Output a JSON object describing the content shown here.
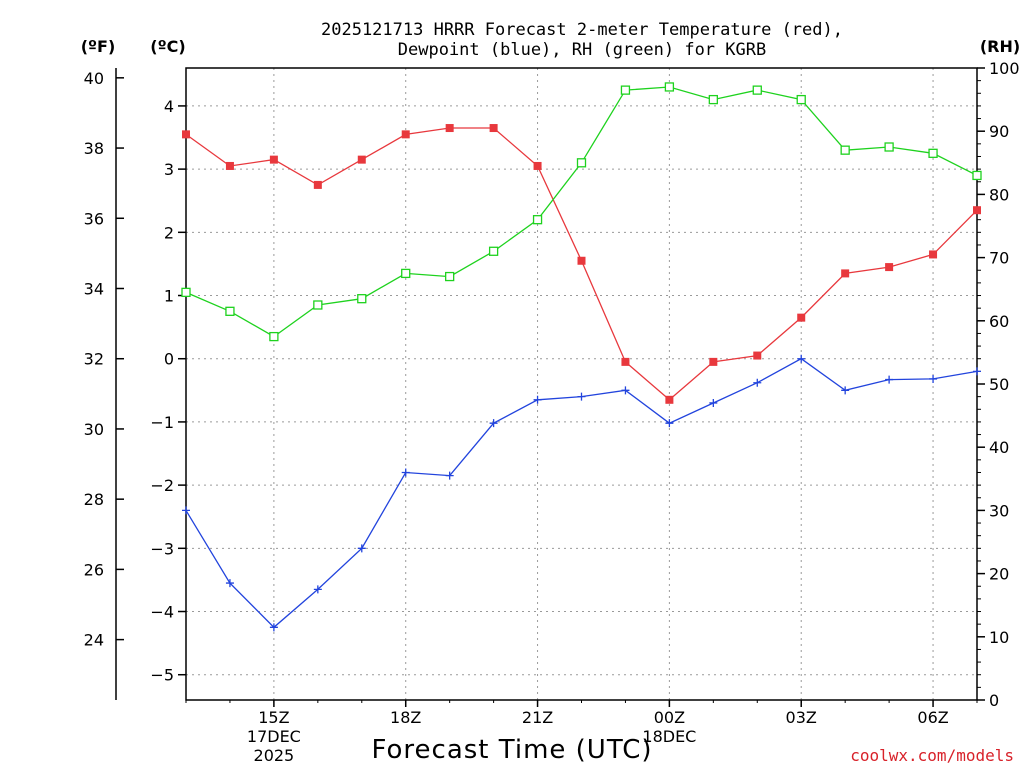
{
  "title_lines": [
    "2025121713 HRRR Forecast 2-meter Temperature (red),",
    "Dewpoint (blue), RH (green) for KGRB"
  ],
  "units": {
    "f": "(ºF)",
    "c": "(ºC)",
    "rh": "(RH)"
  },
  "x_axis_label": "Forecast Time (UTC)",
  "credit": "coolwx.com/models",
  "colors": {
    "temperature": "#e8383d",
    "dewpoint": "#2244dd",
    "rh": "#1ed21e",
    "credit": "#d8222a"
  },
  "chart_data": {
    "type": "line",
    "title": "2025121713 HRRR Forecast 2-meter Temperature (red), Dewpoint (blue), RH (green) for KGRB",
    "xlabel": "Forecast Time (UTC)",
    "x": [
      13,
      14,
      15,
      16,
      17,
      18,
      19,
      20,
      21,
      22,
      23,
      24,
      25,
      26,
      27,
      28,
      29,
      30,
      31
    ],
    "xlim": [
      13,
      31
    ],
    "x_ticks": [
      {
        "x": 15,
        "lines": [
          "15Z",
          "17DEC",
          "2025"
        ]
      },
      {
        "x": 18,
        "lines": [
          "18Z"
        ]
      },
      {
        "x": 21,
        "lines": [
          "21Z"
        ]
      },
      {
        "x": 24,
        "lines": [
          "00Z",
          "18DEC"
        ]
      },
      {
        "x": 27,
        "lines": [
          "03Z"
        ]
      },
      {
        "x": 30,
        "lines": [
          "06Z"
        ]
      }
    ],
    "y_left_celsius": {
      "label": "(ºC)",
      "ylim": [
        -5.4,
        4.6
      ],
      "ticks": [
        -5,
        -4,
        -3,
        -2,
        -1,
        0,
        1,
        2,
        3,
        4
      ],
      "tick_labels": [
        "−5",
        "−4",
        "−3",
        "−2",
        "−1",
        "0",
        "1",
        "2",
        "3",
        "4"
      ]
    },
    "y_left_fahrenheit": {
      "label": "(ºF)",
      "ticks": [
        24,
        26,
        28,
        30,
        32,
        34,
        36,
        38,
        40
      ],
      "tick_labels": [
        "24",
        "26",
        "28",
        "30",
        "32",
        "34",
        "36",
        "38",
        "40"
      ]
    },
    "y_right_rh": {
      "label": "(RH)",
      "ylim": [
        0,
        100
      ],
      "ticks": [
        0,
        10,
        20,
        30,
        40,
        50,
        60,
        70,
        80,
        90,
        100
      ],
      "tick_labels": [
        "0",
        "10",
        "20",
        "30",
        "40",
        "50",
        "60",
        "70",
        "80",
        "90",
        "100"
      ]
    },
    "series": [
      {
        "name": "Temperature",
        "unit": "C",
        "axis": "left",
        "color": "#e8383d",
        "marker": "filled-square",
        "values": [
          3.55,
          3.05,
          3.15,
          2.75,
          3.15,
          3.55,
          3.65,
          3.65,
          3.05,
          1.55,
          -0.05,
          -0.65,
          -0.05,
          0.05,
          0.65,
          1.35,
          1.45,
          1.65,
          2.35
        ]
      },
      {
        "name": "Dewpoint",
        "unit": "C",
        "axis": "left",
        "color": "#2244dd",
        "marker": "plus",
        "values": [
          -2.4,
          -3.55,
          -4.25,
          -3.65,
          -3.0,
          -1.8,
          -1.85,
          -1.02,
          -0.65,
          -0.6,
          -0.5,
          -1.02,
          -0.7,
          -0.38,
          0.0,
          -0.5,
          -0.33,
          -0.32,
          -0.2
        ]
      },
      {
        "name": "RH",
        "unit": "%",
        "axis": "right",
        "color": "#1ed21e",
        "marker": "open-square",
        "values": [
          64.5,
          61.5,
          57.5,
          62.5,
          63.5,
          67.5,
          67.0,
          71.0,
          76.0,
          85.0,
          96.5,
          97.0,
          95.0,
          96.5,
          95.0,
          87.0,
          87.5,
          86.5,
          83.0
        ]
      }
    ]
  }
}
